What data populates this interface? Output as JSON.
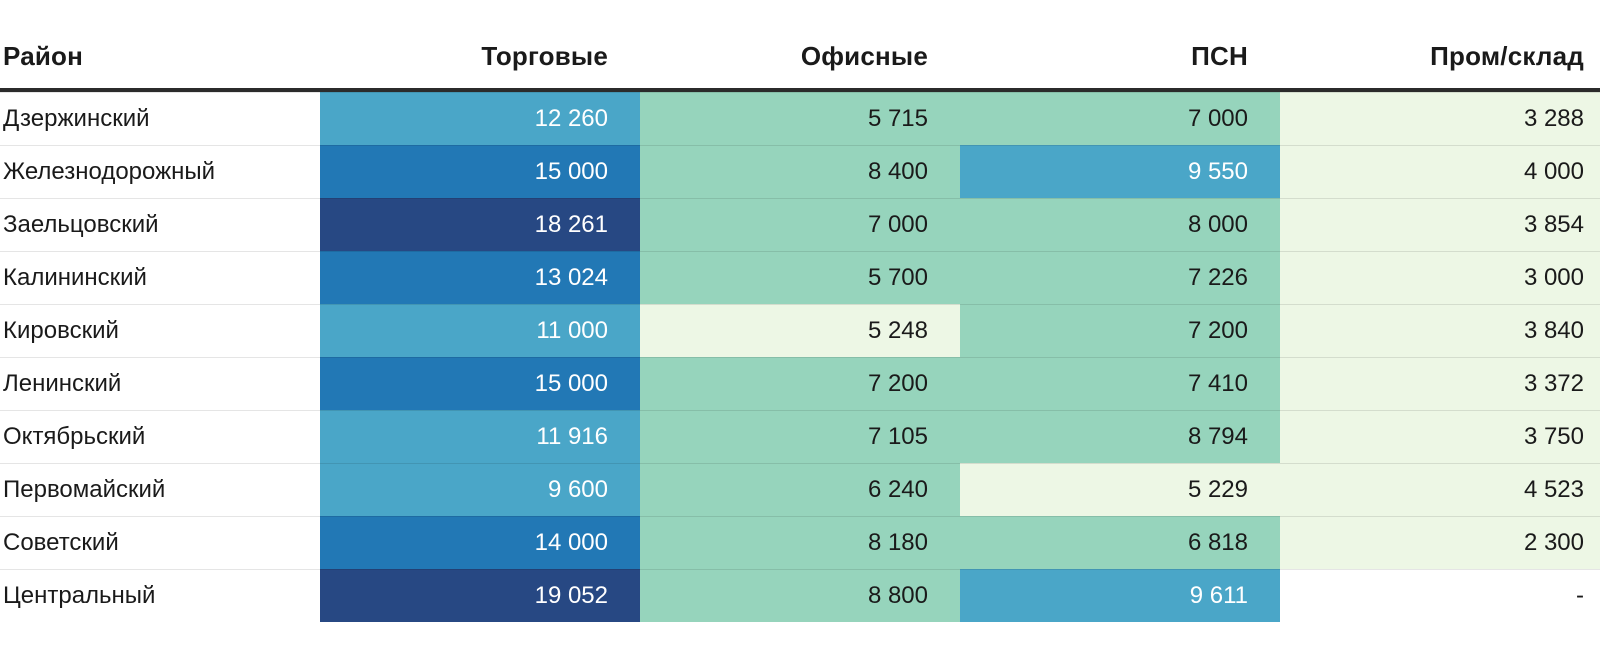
{
  "table": {
    "columns": [
      {
        "label": "Район"
      },
      {
        "label": "Торговые"
      },
      {
        "label": "Офисные"
      },
      {
        "label": "ПСН"
      },
      {
        "label": "Пром/склад"
      }
    ],
    "rows": [
      {
        "district": "Дзержинский",
        "cells": [
          {
            "text": "12 260",
            "color": "teal"
          },
          {
            "text": "5 715",
            "color": "green"
          },
          {
            "text": "7 000",
            "color": "green"
          },
          {
            "text": "3 288",
            "color": "lightgreen"
          }
        ]
      },
      {
        "district": "Железнодорожный",
        "cells": [
          {
            "text": "15 000",
            "color": "blue"
          },
          {
            "text": "8 400",
            "color": "green"
          },
          {
            "text": "9 550",
            "color": "teal"
          },
          {
            "text": "4 000",
            "color": "lightgreen"
          }
        ]
      },
      {
        "district": "Заельцовский",
        "cells": [
          {
            "text": "18 261",
            "color": "navy"
          },
          {
            "text": "7 000",
            "color": "green"
          },
          {
            "text": "8 000",
            "color": "green"
          },
          {
            "text": "3 854",
            "color": "lightgreen"
          }
        ]
      },
      {
        "district": "Калининский",
        "cells": [
          {
            "text": "13 024",
            "color": "blue"
          },
          {
            "text": "5 700",
            "color": "green"
          },
          {
            "text": "7 226",
            "color": "green"
          },
          {
            "text": "3 000",
            "color": "lightgreen"
          }
        ]
      },
      {
        "district": "Кировский",
        "cells": [
          {
            "text": "11 000",
            "color": "teal"
          },
          {
            "text": "5 248",
            "color": "lightgreen"
          },
          {
            "text": "7 200",
            "color": "green"
          },
          {
            "text": "3 840",
            "color": "lightgreen"
          }
        ]
      },
      {
        "district": "Ленинский",
        "cells": [
          {
            "text": "15 000",
            "color": "blue"
          },
          {
            "text": "7 200",
            "color": "green"
          },
          {
            "text": "7 410",
            "color": "green"
          },
          {
            "text": "3 372",
            "color": "lightgreen"
          }
        ]
      },
      {
        "district": "Октябрьский",
        "cells": [
          {
            "text": "11 916",
            "color": "teal"
          },
          {
            "text": "7 105",
            "color": "green"
          },
          {
            "text": "8 794",
            "color": "green"
          },
          {
            "text": "3 750",
            "color": "lightgreen"
          }
        ]
      },
      {
        "district": "Первомайский",
        "cells": [
          {
            "text": "9 600",
            "color": "teal"
          },
          {
            "text": "6 240",
            "color": "green"
          },
          {
            "text": "5 229",
            "color": "lightgreen"
          },
          {
            "text": "4 523",
            "color": "lightgreen"
          }
        ]
      },
      {
        "district": "Советский",
        "cells": [
          {
            "text": "14 000",
            "color": "blue"
          },
          {
            "text": "8 180",
            "color": "green"
          },
          {
            "text": "6 818",
            "color": "green"
          },
          {
            "text": "2 300",
            "color": "lightgreen"
          }
        ]
      },
      {
        "district": "Центральный",
        "cells": [
          {
            "text": "19 052",
            "color": "navy"
          },
          {
            "text": "8 800",
            "color": "green"
          },
          {
            "text": "9 611",
            "color": "teal"
          },
          {
            "text": "-",
            "color": "white"
          }
        ]
      }
    ]
  },
  "palette": {
    "navy": {
      "bg": "#274883",
      "fg": "#ffffff"
    },
    "blue": {
      "bg": "#2278B5",
      "fg": "#ffffff"
    },
    "teal": {
      "bg": "#4AA6C8",
      "fg": "#ffffff"
    },
    "green": {
      "bg": "#96D4BC",
      "fg": "#1a1a1a"
    },
    "lightgreen": {
      "bg": "#EDF7E5",
      "fg": "#1a1a1a"
    },
    "white": {
      "bg": "#ffffff",
      "fg": "#1a1a1a"
    }
  },
  "header_rule_color": "#2b2b2b",
  "chart_data": {
    "type": "heatmap",
    "title": "",
    "rows": [
      "Дзержинский",
      "Железнодорожный",
      "Заельцовский",
      "Калининский",
      "Кировский",
      "Ленинский",
      "Октябрьский",
      "Первомайский",
      "Советский",
      "Центральный"
    ],
    "columns": [
      "Торговые",
      "Офисные",
      "ПСН",
      "Пром/склад"
    ],
    "values": [
      [
        12260,
        5715,
        7000,
        3288
      ],
      [
        15000,
        8400,
        9550,
        4000
      ],
      [
        18261,
        7000,
        8000,
        3854
      ],
      [
        13024,
        5700,
        7226,
        3000
      ],
      [
        11000,
        5248,
        7200,
        3840
      ],
      [
        15000,
        7200,
        7410,
        3372
      ],
      [
        11916,
        7105,
        8794,
        3750
      ],
      [
        9600,
        6240,
        5229,
        4523
      ],
      [
        14000,
        8180,
        6818,
        2300
      ],
      [
        19052,
        8800,
        9611,
        null
      ]
    ],
    "missing_value_display": "-",
    "value_range": [
      2300,
      19052
    ],
    "colorscale": "light-green (low) -> green -> teal -> blue -> navy (high), binned"
  }
}
